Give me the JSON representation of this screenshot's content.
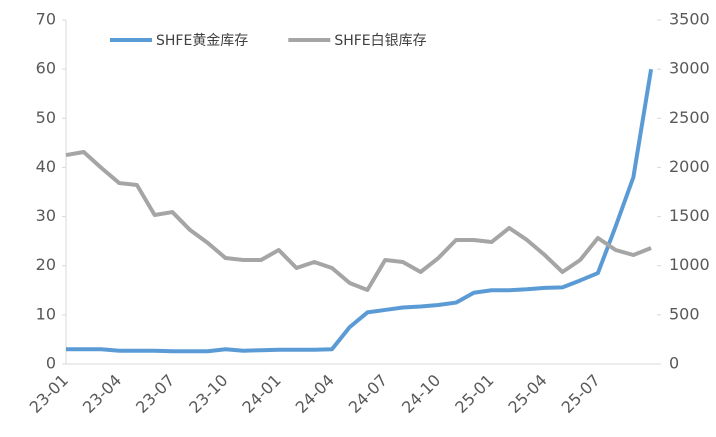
{
  "chart_data": {
    "type": "line",
    "categories": [
      "23-01",
      null,
      null,
      "23-04",
      null,
      null,
      "23-07",
      null,
      null,
      "23-10",
      null,
      null,
      "24-01",
      null,
      null,
      "24-04",
      null,
      null,
      "24-07",
      null,
      null,
      "24-10",
      null,
      null,
      "25-01",
      null,
      null,
      "25-04",
      null,
      null,
      "25-07",
      null,
      null,
      null
    ],
    "series": [
      {
        "name": "SHFE黄金库存",
        "color": "#5b9bd5",
        "axis": "y",
        "values": [
          3,
          3,
          3,
          2.7,
          2.7,
          2.7,
          2.6,
          2.6,
          2.6,
          3,
          2.7,
          2.8,
          2.9,
          2.9,
          2.9,
          3,
          7.5,
          10.5,
          11,
          11.5,
          11.7,
          12,
          12.5,
          14.5,
          15,
          15,
          15.2,
          15.5,
          15.6,
          17,
          18.5,
          28,
          38,
          60
        ]
      },
      {
        "name": "SHFE白银库存",
        "color": "#a5a5a5",
        "axis": "y2",
        "values": [
          2126,
          2157,
          1994,
          1841,
          1821,
          1516,
          1546,
          1363,
          1231,
          1078,
          1058,
          1058,
          1160,
          977,
          1038,
          977,
          824,
          753,
          1058,
          1038,
          936,
          1078,
          1262,
          1262,
          1241,
          1384,
          1262,
          1109,
          936,
          1058,
          1282,
          1160,
          1109,
          1180
        ]
      }
    ],
    "ylim": [
      0,
      70
    ],
    "yticks": [
      0,
      10,
      20,
      30,
      40,
      50,
      60,
      70
    ],
    "y2lim": [
      0,
      3500
    ],
    "y2ticks": [
      0,
      500,
      1000,
      1500,
      2000,
      2500,
      3000,
      3500
    ],
    "legend": "top",
    "grid": false
  }
}
